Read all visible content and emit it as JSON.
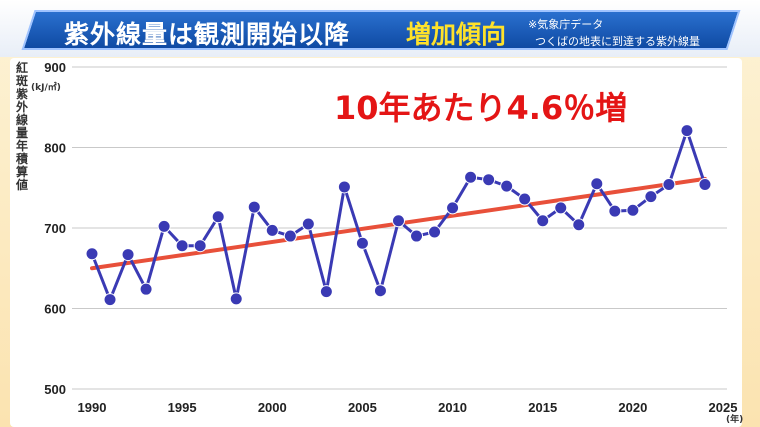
{
  "header": {
    "title": "紫外線量は観測開始以降",
    "highlight": "増加傾向",
    "source_line1": "※気象庁データ",
    "source_line2": "つくばの地表に到達する紫外線量"
  },
  "colors": {
    "banner": "#1b5fc0",
    "highlight": "#ffe22a",
    "series_line": "#3a3ab4",
    "trend_line": "#e8503a",
    "headline": "#e41515"
  },
  "chart_data": {
    "type": "line",
    "title": "",
    "headline": "10年あたり4.6％増",
    "ylabel": "紅斑紫外線量年積算値",
    "yunit": "(kJ/㎡)",
    "xunit": "(年)",
    "ylim": [
      500,
      900
    ],
    "xlim": [
      1990,
      2025
    ],
    "yticks": [
      500,
      600,
      700,
      800,
      900
    ],
    "xticks": [
      1990,
      1995,
      2000,
      2005,
      2010,
      2015,
      2020,
      2025
    ],
    "grid": "horizontal",
    "series": [
      {
        "x": [
          1990,
          1991,
          1992,
          1993,
          1994,
          1995,
          1996,
          1997,
          1998,
          1999,
          2000,
          2001,
          2002,
          2003,
          2004,
          2005,
          2006,
          2007,
          2008,
          2009,
          2010,
          2011,
          2012,
          2013,
          2014,
          2015,
          2016,
          2017,
          2018,
          2019,
          2020,
          2021,
          2022,
          2023,
          2024
        ],
        "values": [
          668,
          611,
          667,
          624,
          702,
          678,
          678,
          714,
          612,
          726,
          697,
          690,
          705,
          621,
          751,
          681,
          622,
          709,
          690,
          695,
          725,
          763,
          760,
          752,
          736,
          709,
          725,
          704,
          755,
          721,
          722,
          739,
          754,
          821,
          754
        ]
      }
    ],
    "trend": {
      "x": [
        1990,
        2024
      ],
      "values": [
        650,
        761
      ]
    }
  }
}
